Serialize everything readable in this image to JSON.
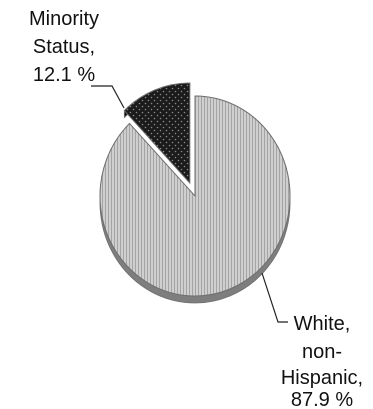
{
  "chart_data": {
    "type": "pie",
    "three_d": true,
    "slices": [
      {
        "label_lines": [
          "Minority",
          "Status,",
          "12.1 %"
        ],
        "value": 12.1,
        "exploded": true,
        "fill": "#1b1b1b",
        "pattern": "dotted"
      },
      {
        "label_lines": [
          "White,",
          "non-",
          "Hispanic,",
          "87.9 %"
        ],
        "value": 87.9,
        "exploded": false,
        "fill": "#d2d2d2",
        "pattern": "vertical-hatch"
      }
    ],
    "colors": {
      "edge": "#6f6f6f",
      "side": "#7e7e7e",
      "leader": "#222222"
    }
  }
}
